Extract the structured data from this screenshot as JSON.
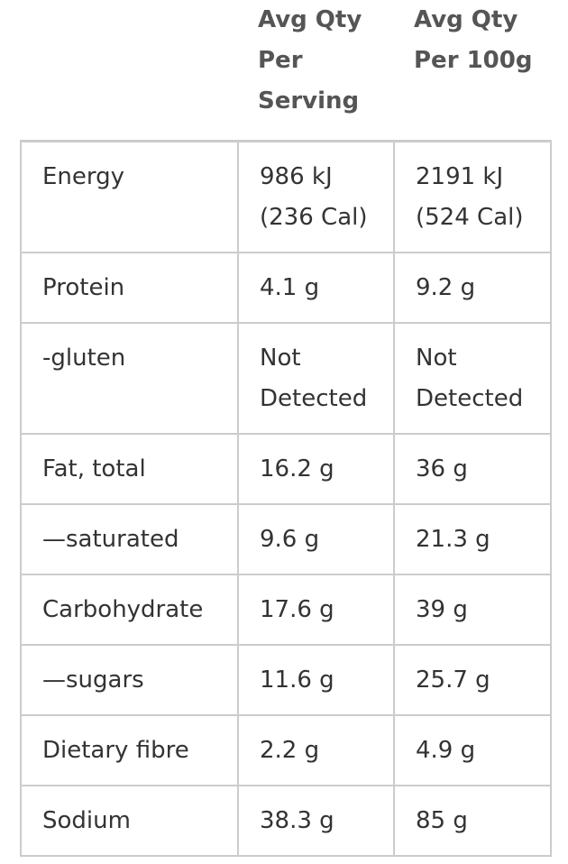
{
  "table": {
    "columns": [
      "Avg Qty Per Serving",
      "Avg Qty Per 100g"
    ],
    "rows": [
      [
        "Energy",
        "986 kJ (236 Cal)",
        "2191 kJ (524 Cal)"
      ],
      [
        "Protein",
        "4.1 g",
        "9.2 g"
      ],
      [
        "-gluten",
        "Not Detected",
        "Not Detected"
      ],
      [
        "Fat, total",
        "16.2 g",
        "36 g"
      ],
      [
        "—saturated",
        "9.6 g",
        "21.3 g"
      ],
      [
        "Carbohydrate",
        "17.6 g",
        "39 g"
      ],
      [
        "—sugars",
        "11.6 g",
        "25.7 g"
      ],
      [
        "Dietary fibre",
        "2.2 g",
        "4.9 g"
      ],
      [
        "Sodium",
        "38.3 g",
        "85 g"
      ]
    ]
  }
}
